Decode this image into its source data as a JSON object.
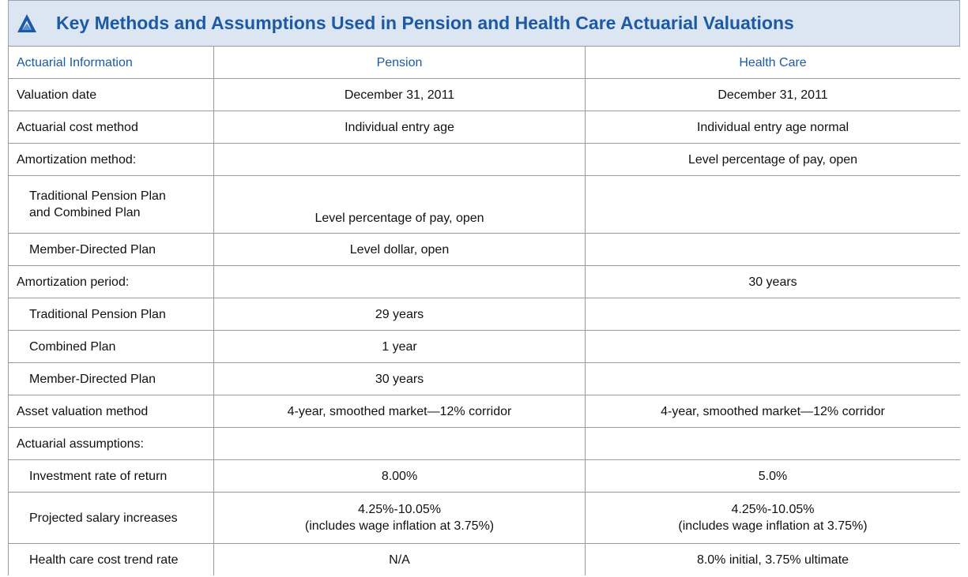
{
  "header": {
    "title": "Key Methods and Assumptions Used in Pension and Health Care Actuarial Valuations"
  },
  "table": {
    "columns": [
      "Actuarial Information",
      "Pension",
      "Health Care"
    ],
    "rows": [
      [
        "Valuation date",
        "December 31, 2011",
        "December 31, 2011"
      ],
      [
        "Actuarial cost method",
        "Individual entry age",
        "Individual entry age normal"
      ],
      [
        "Amortization method:",
        null,
        "Level percentage of pay, open"
      ],
      [
        "Traditional Pension Plan\nand Combined Plan",
        "Level percentage of pay, open",
        null
      ],
      [
        "Member-Directed Plan",
        "Level dollar, open",
        null
      ],
      [
        "Amortization period:",
        null,
        "30 years"
      ],
      [
        "Traditional Pension Plan",
        "29 years",
        null
      ],
      [
        "Combined Plan",
        "1 year",
        null
      ],
      [
        "Member-Directed Plan",
        "30 years",
        null
      ],
      [
        "Asset valuation method",
        "4-year, smoothed market—12% corridor",
        "4-year, smoothed market—12% corridor"
      ],
      [
        "Actuarial assumptions:",
        null,
        null
      ],
      [
        "Investment rate of return",
        "8.00%",
        "5.0%"
      ],
      [
        "Projected salary increases",
        "4.25%-10.05%\n(includes wage inflation at 3.75%)",
        "4.25%-10.05%\n(includes wage inflation at 3.75%)"
      ],
      [
        "Health care cost trend rate",
        "N/A",
        "8.0% initial, 3.75% ultimate"
      ]
    ]
  }
}
